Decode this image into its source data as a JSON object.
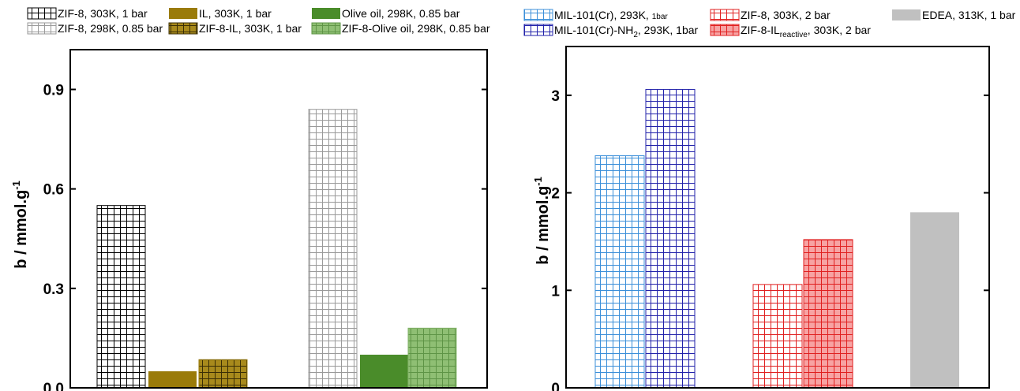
{
  "chart_data": [
    {
      "type": "bar",
      "ylabel": "b / mmol.g",
      "ylabel_sup": "-1",
      "ylim": [
        0,
        1.02
      ],
      "yticks": [
        {
          "value": 0,
          "label": "0.0"
        },
        {
          "value": 0.3,
          "label": "0.3"
        },
        {
          "value": 0.6,
          "label": "0.6"
        },
        {
          "value": 0.9,
          "label": "0.9"
        }
      ],
      "grid": false,
      "legend_position": "top",
      "series": [
        {
          "name": "ZIF-8, 303K, 1 bar",
          "value": 0.55,
          "color": "#000000",
          "pattern": "grid"
        },
        {
          "name": "IL, 303K, 1 bar",
          "value": 0.05,
          "color": "#9a7b0a",
          "pattern": "solid"
        },
        {
          "name": "ZIF-8-IL, 303K, 1 bar",
          "value": 0.085,
          "color": "#9a7b0a",
          "pattern": "grid-fill"
        },
        {
          "name": "ZIF-8, 298K, 0.85 bar",
          "value": 0.84,
          "color": "#9a9a9a",
          "pattern": "grid"
        },
        {
          "name": "Olive oil, 298K, 0.85 bar",
          "value": 0.1,
          "color": "#4a8c2a",
          "pattern": "solid"
        },
        {
          "name": "ZIF-8-Olive oil, 298K, 0.85 bar",
          "value": 0.18,
          "color": "#86b56c",
          "pattern": "grid-fill"
        }
      ]
    },
    {
      "type": "bar",
      "ylabel": "b / mmol.g",
      "ylabel_sup": "-1",
      "ylim": [
        0,
        3.5
      ],
      "yticks": [
        {
          "value": 0,
          "label": "0"
        },
        {
          "value": 1,
          "label": "1"
        },
        {
          "value": 2,
          "label": "2"
        },
        {
          "value": 3,
          "label": "3"
        }
      ],
      "grid": false,
      "legend_position": "top",
      "series": [
        {
          "name": "MIL-101(Cr), 293K, 1bar",
          "value": 2.38,
          "color": "#3b8fd9",
          "pattern": "grid"
        },
        {
          "name": "MIL-101(Cr)-NH2, 293K, 1bar",
          "value": 3.06,
          "color": "#2222aa",
          "pattern": "grid"
        },
        {
          "name": "ZIF-8, 303K, 2 bar",
          "value": 1.06,
          "color": "#e02020",
          "pattern": "grid"
        },
        {
          "name": "ZIF-8-ILreactive, 303K, 2 bar",
          "value": 1.52,
          "color": "#e02020",
          "pattern": "grid-fill"
        },
        {
          "name": "EDEA, 313K, 1 bar",
          "value": 1.8,
          "color": "#c0c0c0",
          "pattern": "solid"
        }
      ]
    }
  ],
  "legend_text": {
    "left": [
      {
        "main": "ZIF-8, 303K, 1 bar"
      },
      {
        "main": "IL, 303K, 1 bar"
      },
      {
        "main": "Olive oil, 298K, 0.85 bar"
      },
      {
        "main": "ZIF-8, 298K, 0.85 bar"
      },
      {
        "main": "ZIF-8-IL, 303K, 1 bar"
      },
      {
        "main": "ZIF-8-Olive oil, 298K, 0.85 bar"
      }
    ],
    "right": [
      {
        "pre": "MIL-101(Cr), 293K, ",
        "small": "1bar"
      },
      {
        "main": "ZIF-8, 303K, 2 bar"
      },
      {
        "main": "EDEA, 313K, 1 bar"
      },
      {
        "pre": "MIL-101(Cr)-NH",
        "sub": "2",
        "post": ", 293K, 1bar"
      },
      {
        "pre": "ZIF-8-IL",
        "sub": "reactive",
        "post": ", 303K, 2 bar"
      }
    ]
  }
}
